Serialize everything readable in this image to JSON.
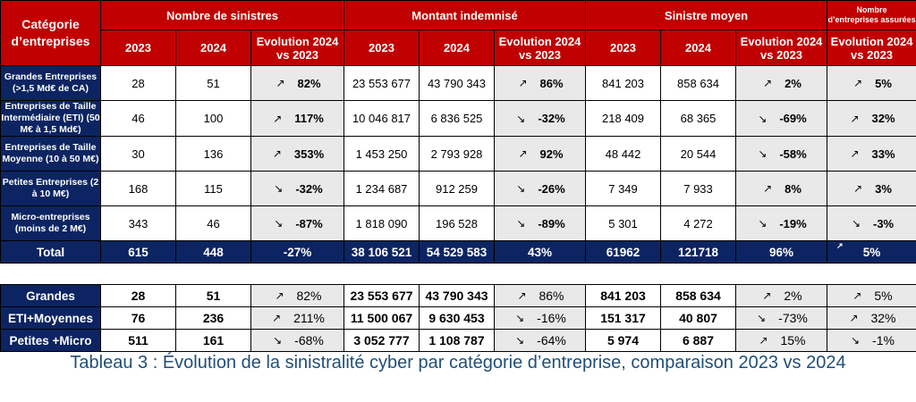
{
  "headers": {
    "category": "Catégorie d’entreprises",
    "group_count": "Nombre de sinistres",
    "group_amount": "Montant indemnisé",
    "group_avg": "Sinistre moyen",
    "group_insured_line1": "Nombre",
    "group_insured_line2": "d’entreprises assurées",
    "year1": "2023",
    "year2": "2024",
    "evolution": "Evolution 2024 vs 2023"
  },
  "rows": [
    {
      "category": "Grandes Entreprises (>1,5 Md€ de CA)",
      "count_2023": "28",
      "count_2024": "51",
      "count_evo": "82%",
      "count_dir": "↗",
      "amount_2023": "23 553 677",
      "amount_2024": "43 790 343",
      "amount_evo": "86%",
      "amount_dir": "↗",
      "avg_2023": "841 203",
      "avg_2024": "858 634",
      "avg_evo": "2%",
      "avg_dir": "↗",
      "insured_evo": "5%",
      "insured_dir": "↗"
    },
    {
      "category": "Entreprises de Taille Intermédiaire (ETI) (50 M€ à 1,5 Md€)",
      "count_2023": "46",
      "count_2024": "100",
      "count_evo": "117%",
      "count_dir": "↗",
      "amount_2023": "10 046 817",
      "amount_2024": "6 836 525",
      "amount_evo": "-32%",
      "amount_dir": "↘",
      "avg_2023": "218 409",
      "avg_2024": "68 365",
      "avg_evo": "-69%",
      "avg_dir": "↘",
      "insured_evo": "32%",
      "insured_dir": "↗"
    },
    {
      "category": "Entreprises de Taille Moyenne (10 à 50 M€)",
      "count_2023": "30",
      "count_2024": "136",
      "count_evo": "353%",
      "count_dir": "↗",
      "amount_2023": "1 453 250",
      "amount_2024": "2 793 928",
      "amount_evo": "92%",
      "amount_dir": "↗",
      "avg_2023": "48 442",
      "avg_2024": "20 544",
      "avg_evo": "-58%",
      "avg_dir": "↘",
      "insured_evo": "33%",
      "insured_dir": "↗"
    },
    {
      "category": "Petites Entreprises (2 à 10 M€)",
      "count_2023": "168",
      "count_2024": "115",
      "count_evo": "-32%",
      "count_dir": "↘",
      "amount_2023": "1 234 687",
      "amount_2024": "912 259",
      "amount_evo": "-26%",
      "amount_dir": "↘",
      "avg_2023": "7 349",
      "avg_2024": "7 933",
      "avg_evo": "8%",
      "avg_dir": "↗",
      "insured_evo": "3%",
      "insured_dir": "↗"
    },
    {
      "category": "Micro-entreprises (moins de 2 M€)",
      "count_2023": "343",
      "count_2024": "46",
      "count_evo": "-87%",
      "count_dir": "↘",
      "amount_2023": "1 818 090",
      "amount_2024": "196 528",
      "amount_evo": "-89%",
      "amount_dir": "↘",
      "avg_2023": "5 301",
      "avg_2024": "4 272",
      "avg_evo": "-19%",
      "avg_dir": "↘",
      "insured_evo": "-3%",
      "insured_dir": "↘"
    }
  ],
  "total": {
    "label": "Total",
    "count_2023": "615",
    "count_2024": "448",
    "count_evo": "-27%",
    "amount_2023": "38 106 521",
    "amount_2024": "54 529 583",
    "amount_evo": "43%",
    "avg_2023": "61962",
    "avg_2024": "121718",
    "avg_evo": "96%",
    "insured_evo": "5%",
    "insured_dir": "↗"
  },
  "summary": [
    {
      "category": "Grandes",
      "count_2023": "28",
      "count_2024": "51",
      "count_evo": "82%",
      "count_dir": "↗",
      "amount_2023": "23 553 677",
      "amount_2024": "43 790 343",
      "amount_evo": "86%",
      "amount_dir": "↗",
      "avg_2023": "841 203",
      "avg_2024": "858 634",
      "avg_evo": "2%",
      "avg_dir": "↗",
      "insured_evo": "5%",
      "insured_dir": "↗"
    },
    {
      "category": "ETI+Moyennes",
      "count_2023": "76",
      "count_2024": "236",
      "count_evo": "211%",
      "count_dir": "↗",
      "amount_2023": "11 500 067",
      "amount_2024": "9 630 453",
      "amount_evo": "-16%",
      "amount_dir": "↘",
      "avg_2023": "151 317",
      "avg_2024": "40 807",
      "avg_evo": "-73%",
      "avg_dir": "↘",
      "insured_evo": "32%",
      "insured_dir": "↗"
    },
    {
      "category": "Petites +Micro",
      "count_2023": "511",
      "count_2024": "161",
      "count_evo": "-68%",
      "count_dir": "↘",
      "amount_2023": "3 052 777",
      "amount_2024": "1 108 787",
      "amount_evo": "-64%",
      "amount_dir": "↘",
      "avg_2023": "5 974",
      "avg_2024": "6 887",
      "avg_evo": "15%",
      "avg_dir": "↗",
      "insured_evo": "-1%",
      "insured_dir": "↘"
    }
  ],
  "caption": "Tableau 3 :  Évolution de la sinistralité cyber par catégorie d’entreprise, comparaison 2023 vs 2024",
  "colors": {
    "header_red": "#c00000",
    "navy": "#0c2461",
    "evo_gray": "#e9e9e9",
    "caption_blue": "#1f4e79"
  }
}
